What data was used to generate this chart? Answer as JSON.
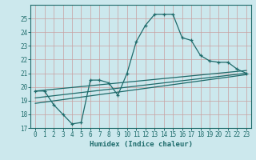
{
  "xlabel": "Humidex (Indice chaleur)",
  "bg_color": "#cce8ed",
  "grid_color": "#b0d4da",
  "line_color": "#1e6b6b",
  "xlim": [
    -0.5,
    23.5
  ],
  "ylim": [
    17,
    26
  ],
  "yticks": [
    17,
    18,
    19,
    20,
    21,
    22,
    23,
    24,
    25
  ],
  "xticks": [
    0,
    1,
    2,
    3,
    4,
    5,
    6,
    7,
    8,
    9,
    10,
    11,
    12,
    13,
    14,
    15,
    16,
    17,
    18,
    19,
    20,
    21,
    22,
    23
  ],
  "main_x": [
    0,
    1,
    2,
    3,
    4,
    5,
    6,
    7,
    8,
    9,
    10,
    11,
    12,
    13,
    14,
    15,
    16,
    17,
    18,
    19,
    20,
    21,
    22,
    23
  ],
  "main_y": [
    19.7,
    19.7,
    18.7,
    18.0,
    17.3,
    17.4,
    20.5,
    20.5,
    20.3,
    19.4,
    21.0,
    23.3,
    24.5,
    25.3,
    25.3,
    25.3,
    23.6,
    23.4,
    22.3,
    21.9,
    21.8,
    21.8,
    21.3,
    21.0
  ],
  "trend1_x": [
    0,
    23
  ],
  "trend1_y": [
    19.7,
    21.2
  ],
  "trend2_x": [
    0,
    23
  ],
  "trend2_y": [
    19.2,
    21.0
  ],
  "trend3_x": [
    0,
    23
  ],
  "trend3_y": [
    18.8,
    20.9
  ]
}
